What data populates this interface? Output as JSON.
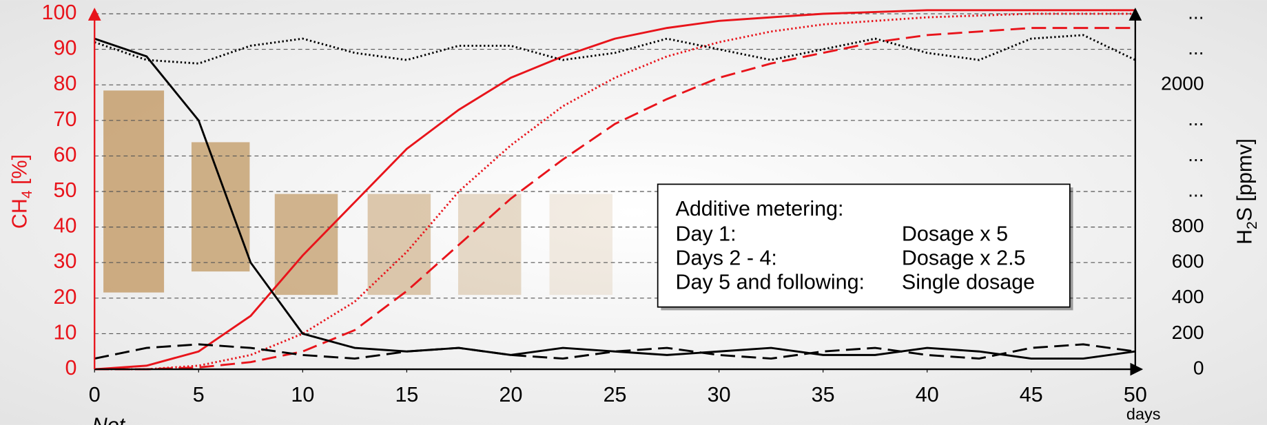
{
  "chart_data": {
    "type": "line",
    "y_label": {
      "main": "CH",
      "sub": "4",
      "unit": " [%]"
    },
    "y2_label": {
      "main": "H",
      "sub": "2",
      "unit": "S [ppmv]"
    },
    "x_unit": "days",
    "note": "Not",
    "x": [
      0,
      2.5,
      5,
      7.5,
      10,
      12.5,
      15,
      17.5,
      20,
      22.5,
      25,
      27.5,
      30,
      32.5,
      35,
      37.5,
      40,
      42.5,
      45,
      47.5,
      50
    ],
    "xlim": [
      0,
      50
    ],
    "xticks": [
      0,
      5,
      10,
      15,
      20,
      25,
      30,
      35,
      40,
      45,
      50
    ],
    "ylim": [
      0,
      100
    ],
    "yticks": [
      0,
      10,
      20,
      30,
      40,
      50,
      60,
      70,
      80,
      90,
      100
    ],
    "y2ticks": [
      0,
      200,
      400,
      600,
      800,
      {
        "label": "..."
      },
      {
        "label": "..."
      },
      {
        "label": "..."
      },
      2000,
      {
        "label": "..."
      },
      {
        "label": "..."
      }
    ],
    "grid": true,
    "series": [
      {
        "color": "#e8141b",
        "dash": "solid",
        "values": [
          0,
          1,
          5,
          15,
          32,
          47,
          62,
          73,
          82,
          88,
          93,
          96,
          98,
          99,
          100,
          100.5,
          101,
          101,
          101,
          101,
          101
        ]
      },
      {
        "color": "#e8141b",
        "dash": "dotted",
        "values": [
          0,
          0,
          1,
          4,
          10,
          19,
          33,
          50,
          63,
          74,
          82,
          88,
          92,
          95,
          97,
          98,
          99,
          99.5,
          100,
          100,
          100
        ]
      },
      {
        "color": "#e8141b",
        "dash": "dashed",
        "values": [
          0,
          0,
          0.5,
          2,
          5,
          11,
          22,
          35,
          48,
          59,
          69,
          76,
          82,
          86,
          89,
          92,
          94,
          95,
          96,
          96,
          96
        ]
      },
      {
        "color": "#000000",
        "dash": "dotted",
        "values": [
          92,
          87,
          86,
          91,
          93,
          89,
          87,
          91,
          91,
          87,
          89,
          93,
          90,
          87,
          90,
          93,
          89,
          87,
          93,
          94,
          87
        ]
      },
      {
        "color": "#000000",
        "dash": "solid",
        "values": [
          93,
          88,
          70,
          30,
          10,
          6,
          5,
          6,
          4,
          6,
          5,
          4,
          5,
          6,
          4,
          4,
          6,
          5,
          3,
          3,
          5
        ]
      },
      {
        "color": "#000000",
        "dash": "dashed",
        "values": [
          3,
          6,
          7,
          6,
          4,
          3,
          5,
          6,
          4,
          3,
          5,
          6,
          4,
          3,
          5,
          6,
          4,
          3,
          6,
          7,
          5
        ]
      }
    ],
    "legend": {
      "title": "Additive metering:",
      "rows": [
        [
          "Day 1:",
          "Dosage x 5"
        ],
        [
          "Days 2 - 4:",
          "Dosage x 2.5"
        ],
        [
          "Day 5 and following:",
          "Single dosage"
        ]
      ]
    }
  }
}
